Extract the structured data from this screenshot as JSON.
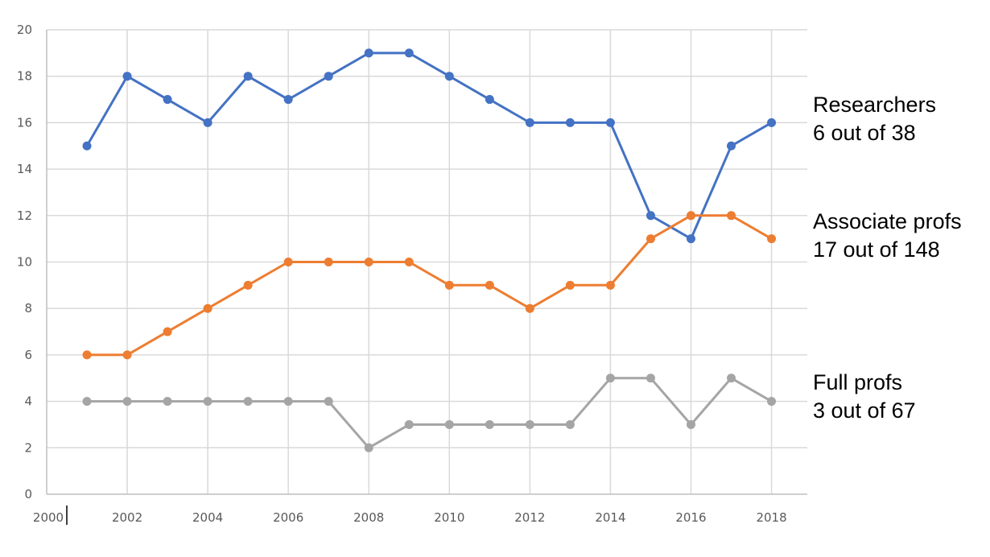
{
  "chart_data": {
    "type": "line",
    "title": "",
    "xlabel": "",
    "ylabel": "",
    "xlim": [
      2000,
      2019
    ],
    "ylim": [
      0,
      20
    ],
    "x_ticks": [
      2000,
      2002,
      2004,
      2006,
      2008,
      2010,
      2012,
      2014,
      2016,
      2018
    ],
    "y_ticks": [
      0,
      2,
      4,
      6,
      8,
      10,
      12,
      14,
      16,
      18,
      20
    ],
    "grid": true,
    "legend": "none",
    "x": [
      2001,
      2002,
      2003,
      2004,
      2005,
      2006,
      2007,
      2008,
      2009,
      2010,
      2011,
      2012,
      2013,
      2014,
      2015,
      2016,
      2017,
      2018
    ],
    "series": [
      {
        "color": "#4472c4",
        "values": [
          15,
          18,
          17,
          16,
          18,
          17,
          18,
          19,
          19,
          18,
          17,
          16,
          16,
          16,
          12,
          11,
          15,
          16
        ],
        "annotation": {
          "line1": "Researchers",
          "line2": "6 out of 38"
        }
      },
      {
        "color": "#ed7d31",
        "values": [
          6,
          6,
          7,
          8,
          9,
          10,
          10,
          10,
          10,
          9,
          9,
          8,
          9,
          9,
          11,
          12,
          12,
          11
        ],
        "annotation": {
          "line1": "Associate profs",
          "line2": "17 out of 148"
        }
      },
      {
        "color": "#a5a5a5",
        "values": [
          4,
          4,
          4,
          4,
          4,
          4,
          4,
          2,
          3,
          3,
          3,
          3,
          3,
          5,
          5,
          3,
          5,
          4
        ],
        "annotation": {
          "line1": "Full profs",
          "line2": "3 out of 67"
        }
      }
    ]
  }
}
